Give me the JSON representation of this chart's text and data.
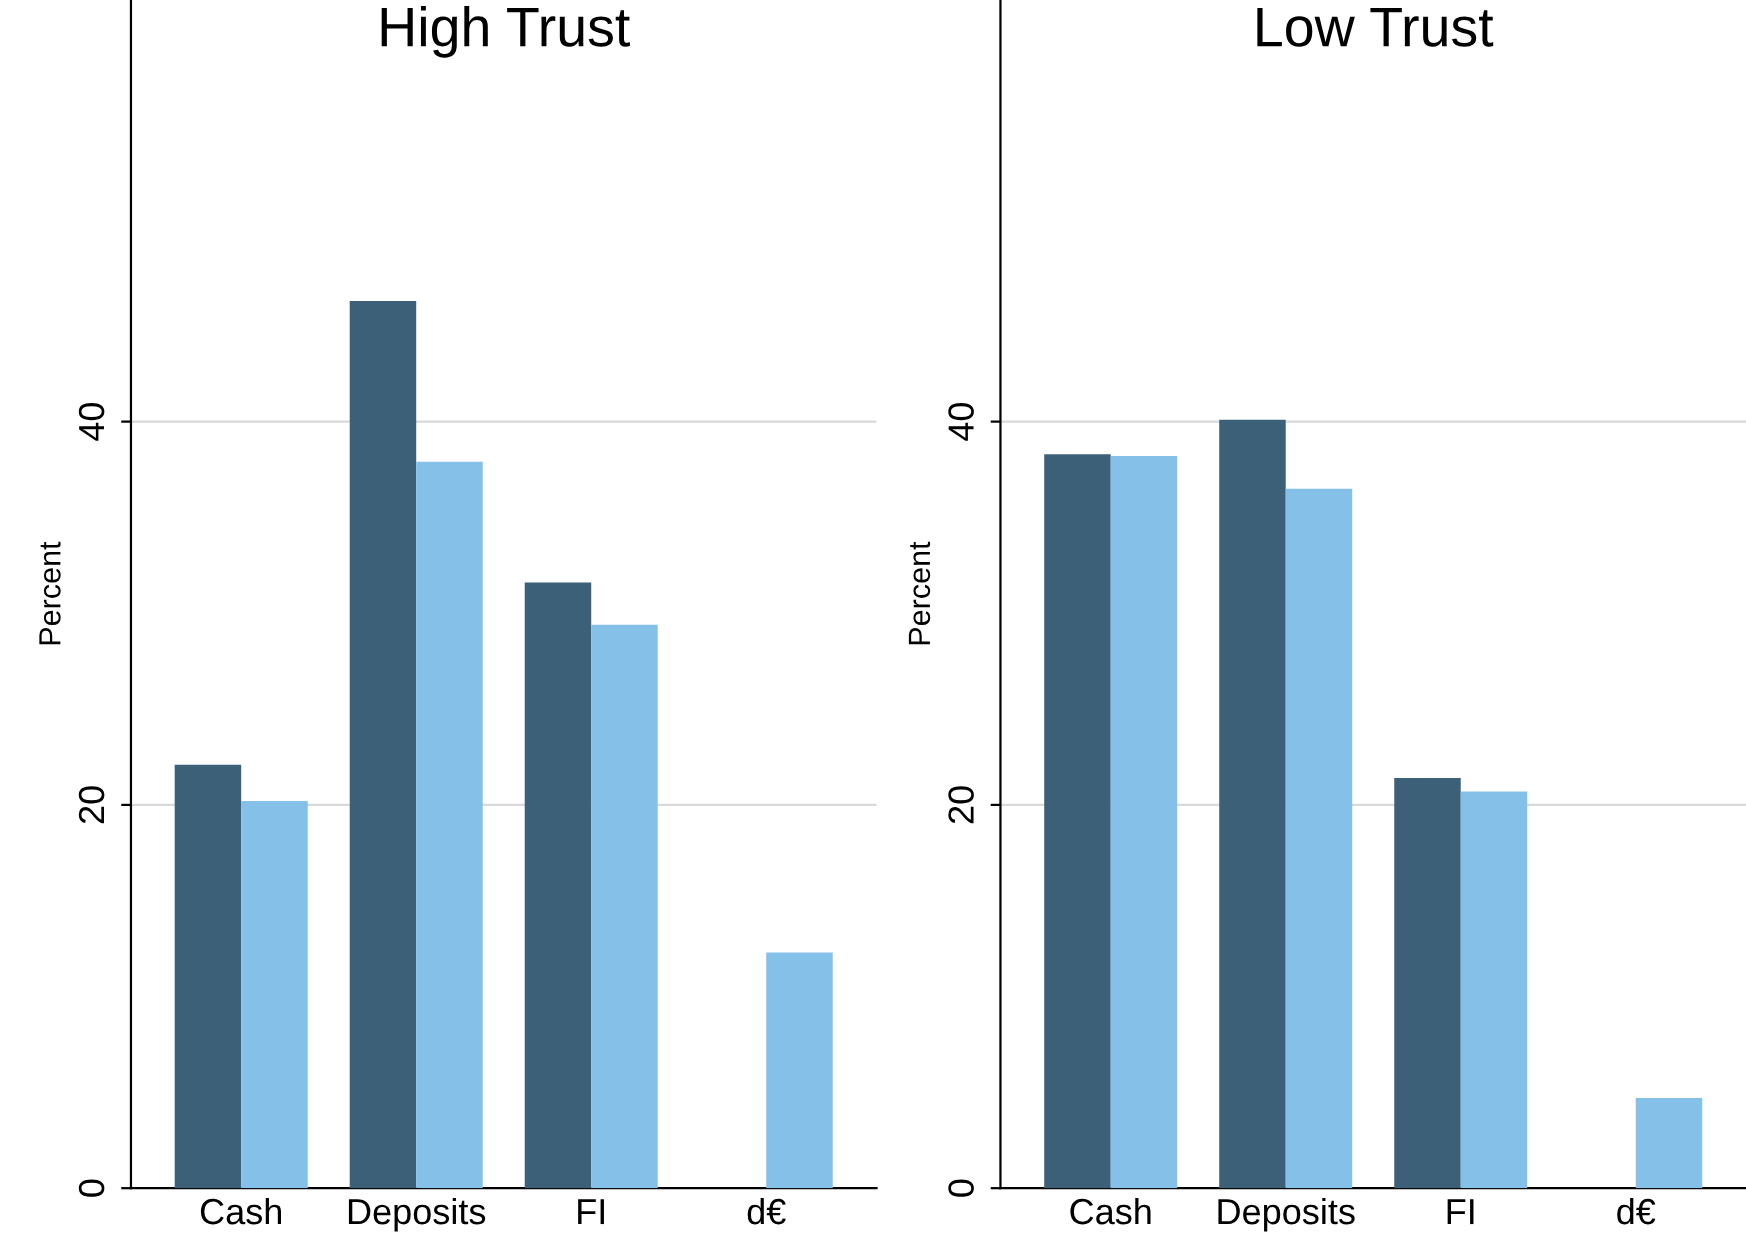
{
  "chart_data": [
    {
      "type": "bar",
      "title": "High Trust",
      "ylabel": "Percent",
      "categories": [
        "Cash",
        "Deposits",
        "FI",
        "d€"
      ],
      "series": [
        {
          "color": "#3d6079",
          "values": [
            22.1,
            46.3,
            31.6,
            null
          ]
        },
        {
          "color": "#85c0e8",
          "values": [
            20.2,
            37.9,
            29.4,
            12.3
          ]
        }
      ],
      "ylim": [
        0,
        62
      ],
      "yticks": [
        0,
        20,
        40
      ],
      "grid": "y",
      "legend": false
    },
    {
      "type": "bar",
      "title": "Low Trust",
      "ylabel": "Percent",
      "categories": [
        "Cash",
        "Deposits",
        "FI",
        "d€"
      ],
      "series": [
        {
          "color": "#3d6079",
          "values": [
            38.3,
            40.1,
            21.4,
            null
          ]
        },
        {
          "color": "#85c0e8",
          "values": [
            38.2,
            36.5,
            20.7,
            4.7
          ]
        }
      ],
      "ylim": [
        0,
        62
      ],
      "yticks": [
        0,
        20,
        40
      ],
      "grid": "y",
      "legend": false
    }
  ]
}
